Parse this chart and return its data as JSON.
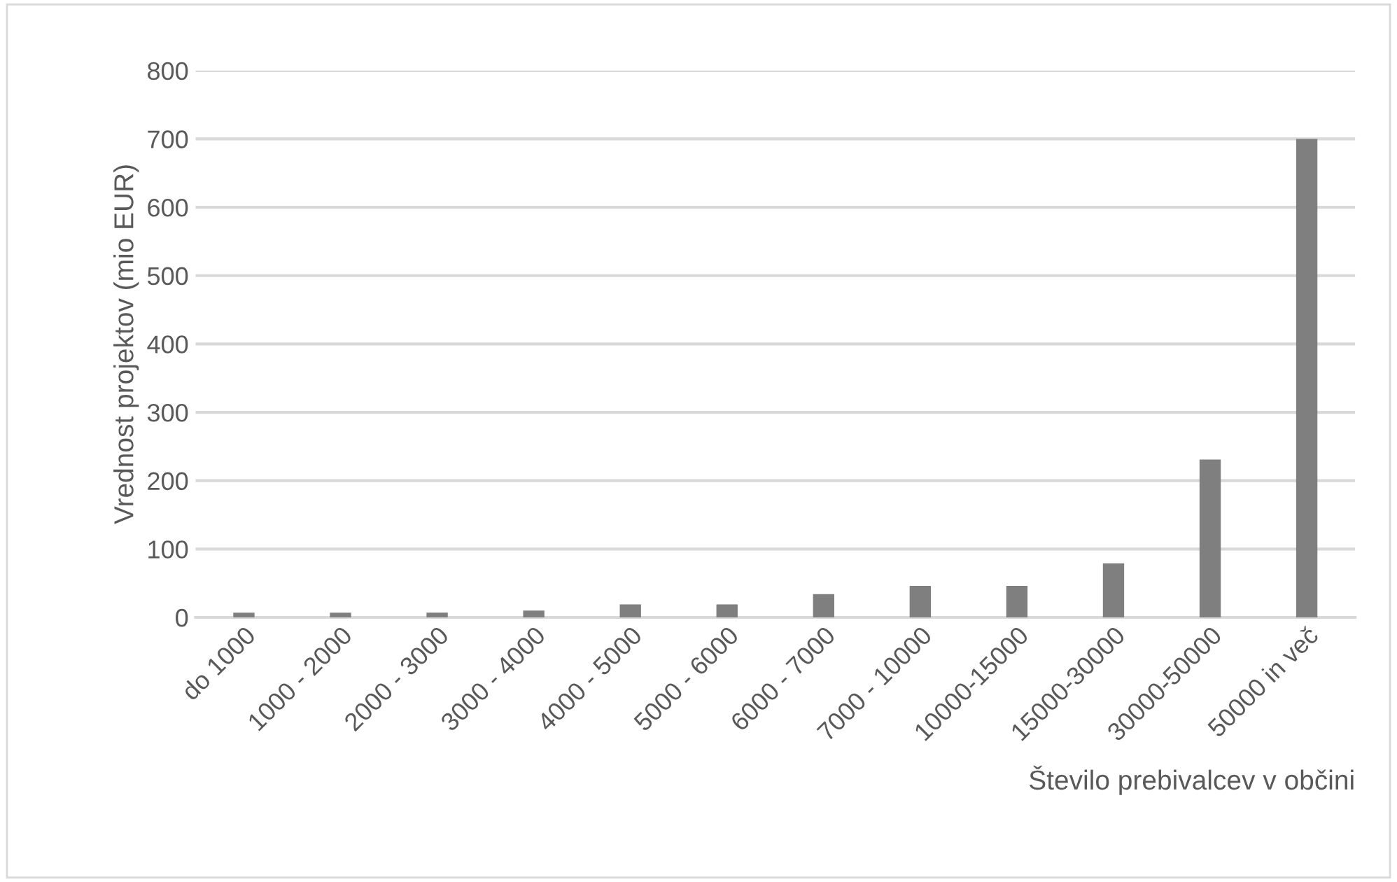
{
  "chart_data": {
    "type": "bar",
    "xlabel": "Število prebivalcev v občini",
    "ylabel": "Vrednost projektov (mio EUR)",
    "categories": [
      "do 1000",
      "1000 - 2000",
      "2000 - 3000",
      "3000 - 4000",
      "4000 - 5000",
      "5000 - 6000",
      "6000 - 7000",
      "7000 - 10000",
      "10000-15000",
      "15000-30000",
      "30000-50000",
      "50000 in več"
    ],
    "values": [
      7,
      7,
      7,
      10,
      19,
      19,
      34,
      46,
      46,
      79,
      231,
      700
    ],
    "color": "#7f7f7f",
    "ylim": [
      0,
      800
    ],
    "yticks": [
      0,
      100,
      200,
      300,
      400,
      500,
      600,
      700,
      800
    ],
    "grid": "y",
    "legend": false
  }
}
